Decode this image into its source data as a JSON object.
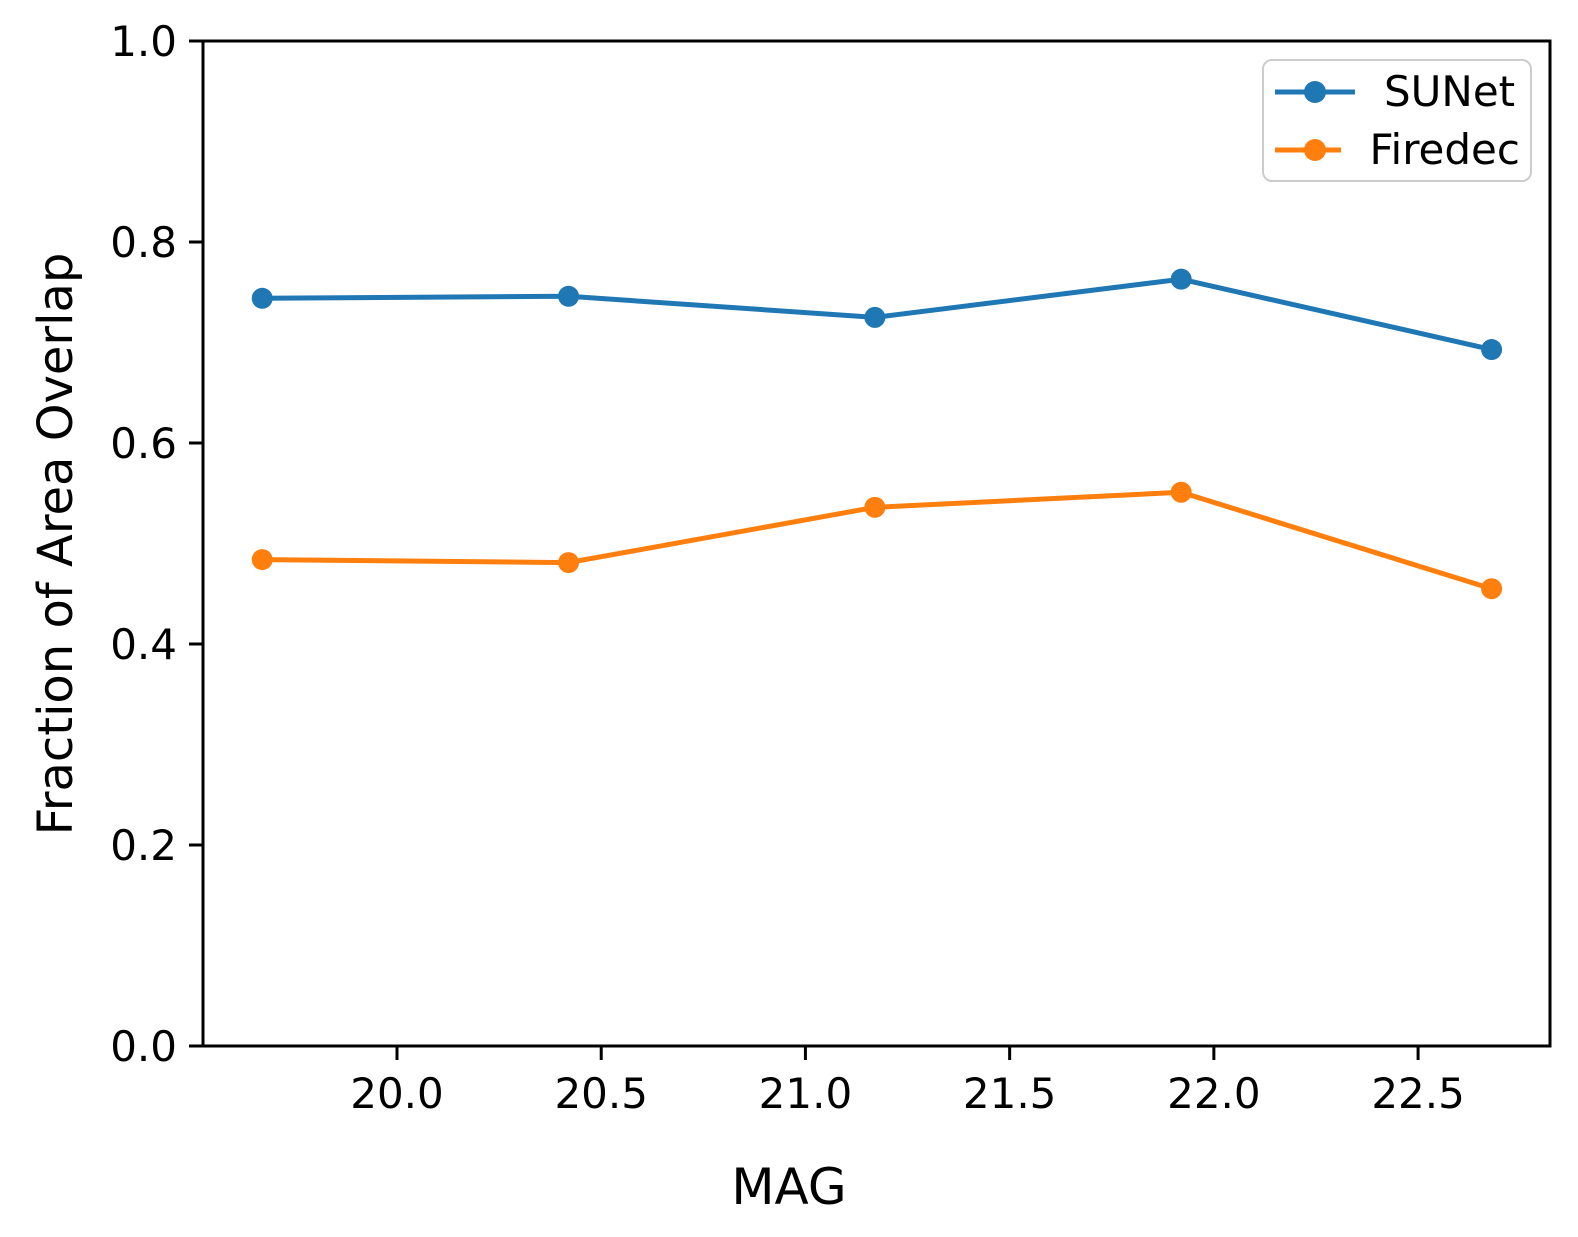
{
  "chart_data": {
    "type": "line",
    "title": "",
    "xlabel": "MAG",
    "ylabel": "Fraction of Area Overlap",
    "xlim": [
      19.525,
      22.823
    ],
    "ylim": [
      0.0,
      1.0
    ],
    "x": [
      19.67,
      20.42,
      21.17,
      21.92,
      22.68
    ],
    "series": [
      {
        "name": "SUNet",
        "color": "#1f77b4",
        "values": [
          0.744,
          0.746,
          0.725,
          0.763,
          0.693
        ]
      },
      {
        "name": "Firedec",
        "color": "#ff7f0e",
        "values": [
          0.484,
          0.481,
          0.536,
          0.551,
          0.455
        ]
      }
    ],
    "x_ticks": {
      "values": [
        20.0,
        20.5,
        21.0,
        21.5,
        22.0,
        22.5
      ],
      "labels": [
        "20.0",
        "20.5",
        "21.0",
        "21.5",
        "22.0",
        "22.5"
      ]
    },
    "y_ticks": {
      "values": [
        0.0,
        0.2,
        0.4,
        0.6,
        0.8,
        1.0
      ],
      "labels": [
        "0.0",
        "0.2",
        "0.4",
        "0.6",
        "0.8",
        "1.0"
      ]
    },
    "grid": false,
    "legend": {
      "position": "top-right",
      "entries": [
        "SUNet",
        "Firedec"
      ]
    },
    "axis_color": "#000000",
    "background_color": "#ffffff"
  }
}
